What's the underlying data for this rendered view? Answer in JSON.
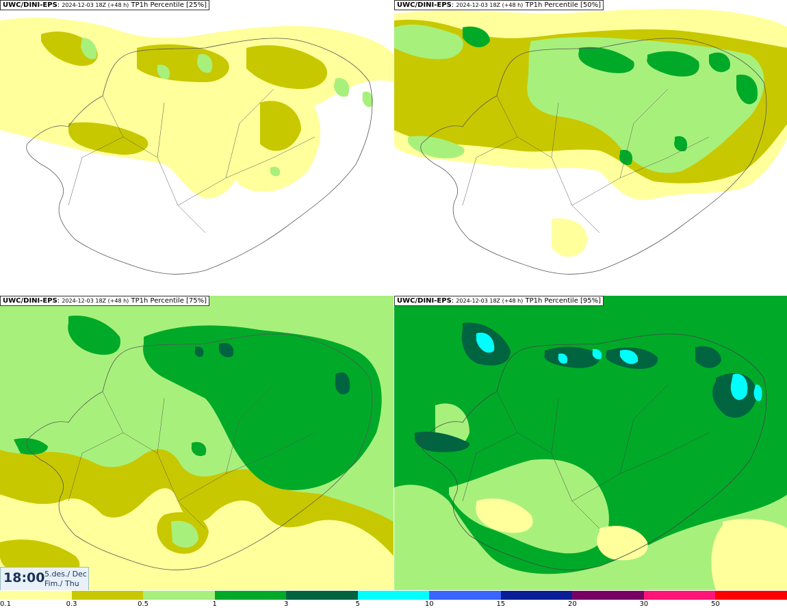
{
  "panels": [
    {
      "model": "UWC/DINI-EPS",
      "run": "2024-12-03 18Z (+48 h)",
      "field": "TP1h Percentile [25%]",
      "percentile": 25
    },
    {
      "model": "UWC/DINI-EPS",
      "run": "2024-12-03 18Z (+48 h)",
      "field": "TP1h Percentile [50%]",
      "percentile": 50
    },
    {
      "model": "UWC/DINI-EPS",
      "run": "2024-12-03 18Z (+48 h)",
      "field": "TP1h Percentile [75%]",
      "percentile": 75
    },
    {
      "model": "UWC/DINI-EPS",
      "run": "2024-12-03 18Z (+48 h)",
      "field": "TP1h Percentile [95%]",
      "percentile": 95
    }
  ],
  "timestamp": {
    "time": "18:00",
    "date": "5.des./ Dec",
    "weekday": "Fim./ Thu"
  },
  "legend": {
    "ticks": [
      "0.1",
      "0.3",
      "0.5",
      "1",
      "3",
      "5",
      "10",
      "15",
      "20",
      "30",
      "50"
    ],
    "colors": [
      "#ffff9c",
      "#c8c800",
      "#a8f07c",
      "#00aa28",
      "#006440",
      "#00ffff",
      "#3c64ff",
      "#0a1e96",
      "#780064",
      "#ff1478",
      "#ff0000"
    ]
  }
}
